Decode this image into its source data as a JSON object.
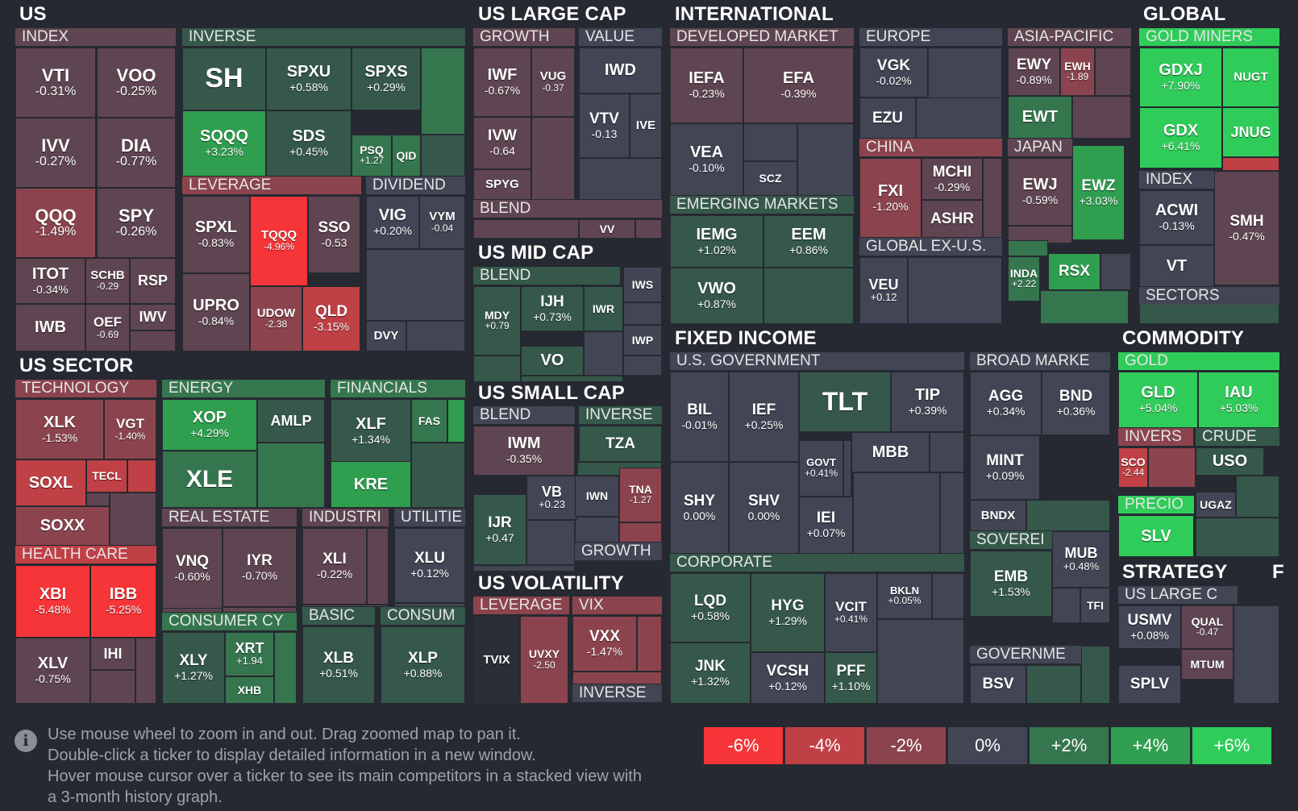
{
  "colors": {
    "r6": "#f63538",
    "r4": "#bf4045",
    "r2": "#8b444e",
    "r1": "#5f4551",
    "z": "#414554",
    "g1": "#35584a",
    "g2": "#35764e",
    "g4": "#2f9e4f",
    "g6": "#30cc5a",
    "bg": "#262931"
  },
  "sections": [
    {
      "key": "us",
      "label": "US"
    },
    {
      "key": "us_large_cap",
      "label": "US LARGE CAP"
    },
    {
      "key": "international",
      "label": "INTERNATIONAL"
    },
    {
      "key": "global",
      "label": "GLOBAL"
    },
    {
      "key": "us_sector",
      "label": "US SECTOR"
    },
    {
      "key": "us_mid_cap",
      "label": "US MID CAP"
    },
    {
      "key": "us_small_cap",
      "label": "US SMALL CAP"
    },
    {
      "key": "fixed_income",
      "label": "FIXED INCOME"
    },
    {
      "key": "commodity",
      "label": "COMMODITY"
    },
    {
      "key": "us_volatility",
      "label": "US VOLATILITY"
    },
    {
      "key": "strategy",
      "label": "STRATEGY"
    },
    {
      "key": "f",
      "label": "F"
    }
  ],
  "groups": [
    {
      "key": "index",
      "label": "INDEX"
    },
    {
      "key": "inverse",
      "label": "INVERSE"
    },
    {
      "key": "leverage",
      "label": "LEVERAGE"
    },
    {
      "key": "dividend",
      "label": "DIVIDEND"
    },
    {
      "key": "growth",
      "label": "GROWTH"
    },
    {
      "key": "value",
      "label": "VALUE"
    },
    {
      "key": "blend_lc",
      "label": "BLEND"
    },
    {
      "key": "developed",
      "label": "DEVELOPED MARKET"
    },
    {
      "key": "europe",
      "label": "EUROPE"
    },
    {
      "key": "asia",
      "label": "ASIA-PACIFIC"
    },
    {
      "key": "china",
      "label": "CHINA"
    },
    {
      "key": "japan",
      "label": "JAPAN"
    },
    {
      "key": "emerging",
      "label": "EMERGING MARKETS"
    },
    {
      "key": "globalexus",
      "label": "GLOBAL EX-U.S."
    },
    {
      "key": "goldminers",
      "label": "GOLD MINERS"
    },
    {
      "key": "gindex",
      "label": "INDEX"
    },
    {
      "key": "sectors",
      "label": "SECTORS"
    },
    {
      "key": "blend_mc",
      "label": "BLEND"
    },
    {
      "key": "blend_sc",
      "label": "BLEND"
    },
    {
      "key": "inverse_sc",
      "label": "INVERSE"
    },
    {
      "key": "growth_sc",
      "label": "GROWTH"
    },
    {
      "key": "technology",
      "label": "TECHNOLOGY"
    },
    {
      "key": "energy",
      "label": "ENERGY"
    },
    {
      "key": "financials",
      "label": "FINANCIALS"
    },
    {
      "key": "healthcare",
      "label": "HEALTH CARE"
    },
    {
      "key": "realestate",
      "label": "REAL ESTATE"
    },
    {
      "key": "industri",
      "label": "INDUSTRI"
    },
    {
      "key": "utilitie",
      "label": "UTILITIE"
    },
    {
      "key": "consumercy",
      "label": "CONSUMER CY"
    },
    {
      "key": "basic",
      "label": "BASIC"
    },
    {
      "key": "consum",
      "label": "CONSUM"
    },
    {
      "key": "vleverage",
      "label": "LEVERAGE"
    },
    {
      "key": "vix",
      "label": "VIX"
    },
    {
      "key": "vinverse",
      "label": "INVERSE"
    },
    {
      "key": "usgov",
      "label": "U.S. GOVERNMENT"
    },
    {
      "key": "broad",
      "label": "BROAD MARKE"
    },
    {
      "key": "corporate",
      "label": "CORPORATE"
    },
    {
      "key": "sovereign",
      "label": "SOVEREI"
    },
    {
      "key": "governme",
      "label": "GOVERNME"
    },
    {
      "key": "gold",
      "label": "GOLD"
    },
    {
      "key": "invers",
      "label": "INVERS"
    },
    {
      "key": "crude",
      "label": "CRUDE"
    },
    {
      "key": "precio",
      "label": "PRECIO"
    },
    {
      "key": "uslargec",
      "label": "US LARGE C"
    }
  ],
  "tickers": [
    {
      "t": "VTI",
      "p": "-0.31%",
      "c": "r1"
    },
    {
      "t": "VOO",
      "p": "-0.25%",
      "c": "r1"
    },
    {
      "t": "IVV",
      "p": "-0.27%",
      "c": "r1"
    },
    {
      "t": "DIA",
      "p": "-0.77%",
      "c": "r1"
    },
    {
      "t": "QQQ",
      "p": "-1.49%",
      "c": "r2"
    },
    {
      "t": "SPY",
      "p": "-0.26%",
      "c": "r1"
    },
    {
      "t": "ITOT",
      "p": "-0.34%",
      "c": "r1"
    },
    {
      "t": "SCHB",
      "p": "-0.29",
      "c": "r1"
    },
    {
      "t": "RSP",
      "p": "",
      "c": "r1"
    },
    {
      "t": "IWB",
      "p": "",
      "c": "r1"
    },
    {
      "t": "OEF",
      "p": "-0.69",
      "c": "r1"
    },
    {
      "t": "IWV",
      "p": "",
      "c": "r1"
    },
    {
      "t": "SH",
      "p": "",
      "c": "g1"
    },
    {
      "t": "SPXU",
      "p": "+0.58%",
      "c": "g1"
    },
    {
      "t": "SPXS",
      "p": "+0.29%",
      "c": "g1"
    },
    {
      "t": "SQQQ",
      "p": "+3.23%",
      "c": "g4"
    },
    {
      "t": "SDS",
      "p": "+0.45%",
      "c": "g1"
    },
    {
      "t": "PSQ",
      "p": "+1.27",
      "c": "g2"
    },
    {
      "t": "QID",
      "p": "",
      "c": "g2"
    },
    {
      "t": "SPXL",
      "p": "-0.83%",
      "c": "r1"
    },
    {
      "t": "TQQQ",
      "p": "-4.96%",
      "c": "r6"
    },
    {
      "t": "SSO",
      "p": "-0.53",
      "c": "r1"
    },
    {
      "t": "UPRO",
      "p": "-0.84%",
      "c": "r1"
    },
    {
      "t": "UDOW",
      "p": "-2.38",
      "c": "r2"
    },
    {
      "t": "QLD",
      "p": "-3.15%",
      "c": "r4"
    },
    {
      "t": "VIG",
      "p": "+0.20%",
      "c": "z"
    },
    {
      "t": "VYM",
      "p": "-0.04",
      "c": "z"
    },
    {
      "t": "DVY",
      "p": "",
      "c": "z"
    },
    {
      "t": "IWF",
      "p": "-0.67%",
      "c": "r1"
    },
    {
      "t": "VUG",
      "p": "-0.37",
      "c": "r1"
    },
    {
      "t": "IVW",
      "p": "-0.64",
      "c": "r1"
    },
    {
      "t": "SPYG",
      "p": "",
      "c": "r1"
    },
    {
      "t": "IWD",
      "p": "",
      "c": "z"
    },
    {
      "t": "VTV",
      "p": "-0.13",
      "c": "z"
    },
    {
      "t": "IVE",
      "p": "",
      "c": "z"
    },
    {
      "t": "VV",
      "p": "",
      "c": "r1"
    },
    {
      "t": "IEFA",
      "p": "-0.23%",
      "c": "r1"
    },
    {
      "t": "EFA",
      "p": "-0.39%",
      "c": "r1"
    },
    {
      "t": "VEA",
      "p": "-0.10%",
      "c": "z"
    },
    {
      "t": "SCZ",
      "p": "",
      "c": "z"
    },
    {
      "t": "VGK",
      "p": "-0.02%",
      "c": "z"
    },
    {
      "t": "EZU",
      "p": "",
      "c": "z"
    },
    {
      "t": "EWY",
      "p": "-0.89%",
      "c": "r1"
    },
    {
      "t": "EWH",
      "p": "-1.89",
      "c": "r2"
    },
    {
      "t": "EWT",
      "p": "",
      "c": "g2"
    },
    {
      "t": "FXI",
      "p": "-1.20%",
      "c": "r2"
    },
    {
      "t": "MCHI",
      "p": "-0.29%",
      "c": "r1"
    },
    {
      "t": "ASHR",
      "p": "",
      "c": "r1"
    },
    {
      "t": "EWJ",
      "p": "-0.59%",
      "c": "r1"
    },
    {
      "t": "EWZ",
      "p": "+3.03%",
      "c": "g4"
    },
    {
      "t": "IEMG",
      "p": "+1.02%",
      "c": "g1"
    },
    {
      "t": "EEM",
      "p": "+0.86%",
      "c": "g1"
    },
    {
      "t": "VWO",
      "p": "+0.87%",
      "c": "g1"
    },
    {
      "t": "VEU",
      "p": "+0.12",
      "c": "z"
    },
    {
      "t": "INDA",
      "p": "+2.22",
      "c": "g2"
    },
    {
      "t": "RSX",
      "p": "",
      "c": "g4"
    },
    {
      "t": "GDXJ",
      "p": "+7.90%",
      "c": "g6"
    },
    {
      "t": "NUGT",
      "p": "",
      "c": "g6"
    },
    {
      "t": "GDX",
      "p": "+6.41%",
      "c": "g6"
    },
    {
      "t": "JNUG",
      "p": "",
      "c": "g6"
    },
    {
      "t": "ACWI",
      "p": "-0.13%",
      "c": "z"
    },
    {
      "t": "SMH",
      "p": "-0.47%",
      "c": "r1"
    },
    {
      "t": "VT",
      "p": "",
      "c": "z"
    },
    {
      "t": "MDY",
      "p": "+0.79",
      "c": "g1"
    },
    {
      "t": "IJH",
      "p": "+0.73%",
      "c": "g1"
    },
    {
      "t": "IWR",
      "p": "",
      "c": "g1"
    },
    {
      "t": "IWS",
      "p": "",
      "c": "z"
    },
    {
      "t": "IWP",
      "p": "",
      "c": "z"
    },
    {
      "t": "VO",
      "p": "",
      "c": "g1"
    },
    {
      "t": "IWM",
      "p": "-0.35%",
      "c": "r1"
    },
    {
      "t": "TZA",
      "p": "",
      "c": "g1"
    },
    {
      "t": "VB",
      "p": "+0.23",
      "c": "z"
    },
    {
      "t": "IWN",
      "p": "",
      "c": "z"
    },
    {
      "t": "TNA",
      "p": "-1.27",
      "c": "r2"
    },
    {
      "t": "IJR",
      "p": "+0.47",
      "c": "g1"
    },
    {
      "t": "XLK",
      "p": "-1.53%",
      "c": "r2"
    },
    {
      "t": "VGT",
      "p": "-1.40%",
      "c": "r2"
    },
    {
      "t": "SOXL",
      "p": "",
      "c": "r4"
    },
    {
      "t": "TECL",
      "p": "",
      "c": "r4"
    },
    {
      "t": "SOXX",
      "p": "",
      "c": "r2"
    },
    {
      "t": "XOP",
      "p": "+4.29%",
      "c": "g4"
    },
    {
      "t": "AMLP",
      "p": "",
      "c": "g1"
    },
    {
      "t": "XLE",
      "p": "",
      "c": "g2"
    },
    {
      "t": "XLF",
      "p": "+1.34%",
      "c": "g1"
    },
    {
      "t": "FAS",
      "p": "",
      "c": "g2"
    },
    {
      "t": "KRE",
      "p": "",
      "c": "g4"
    },
    {
      "t": "XBI",
      "p": "-5.48%",
      "c": "r6"
    },
    {
      "t": "IBB",
      "p": "-5.25%",
      "c": "r6"
    },
    {
      "t": "XLV",
      "p": "-0.75%",
      "c": "r1"
    },
    {
      "t": "IHI",
      "p": "",
      "c": "r1"
    },
    {
      "t": "VNQ",
      "p": "-0.60%",
      "c": "r1"
    },
    {
      "t": "IYR",
      "p": "-0.70%",
      "c": "r1"
    },
    {
      "t": "XLI",
      "p": "-0.22%",
      "c": "r1"
    },
    {
      "t": "XLU",
      "p": "+0.12%",
      "c": "z"
    },
    {
      "t": "XLY",
      "p": "+1.27%",
      "c": "g1"
    },
    {
      "t": "XRT",
      "p": "+1.94",
      "c": "g2"
    },
    {
      "t": "XHB",
      "p": "",
      "c": "g2"
    },
    {
      "t": "XLB",
      "p": "+0.51%",
      "c": "g1"
    },
    {
      "t": "XLP",
      "p": "+0.88%",
      "c": "g1"
    },
    {
      "t": "TVIX",
      "p": "",
      "c": "bg2"
    },
    {
      "t": "UVXY",
      "p": "-2.50",
      "c": "r2"
    },
    {
      "t": "VXX",
      "p": "-1.47%",
      "c": "r2"
    },
    {
      "t": "BIL",
      "p": "-0.01%",
      "c": "z"
    },
    {
      "t": "IEF",
      "p": "+0.25%",
      "c": "z"
    },
    {
      "t": "TLT",
      "p": "",
      "c": "g1"
    },
    {
      "t": "TIP",
      "p": "+0.39%",
      "c": "z"
    },
    {
      "t": "SHY",
      "p": "0.00%",
      "c": "z"
    },
    {
      "t": "SHV",
      "p": "0.00%",
      "c": "z"
    },
    {
      "t": "GOVT",
      "p": "+0.41%",
      "c": "z"
    },
    {
      "t": "MBB",
      "p": "",
      "c": "z"
    },
    {
      "t": "IEI",
      "p": "+0.07%",
      "c": "z"
    },
    {
      "t": "AGG",
      "p": "+0.34%",
      "c": "z"
    },
    {
      "t": "BND",
      "p": "+0.36%",
      "c": "z"
    },
    {
      "t": "MINT",
      "p": "+0.09%",
      "c": "z"
    },
    {
      "t": "BNDX",
      "p": "",
      "c": "z"
    },
    {
      "t": "LQD",
      "p": "+0.58%",
      "c": "g1"
    },
    {
      "t": "HYG",
      "p": "+1.29%",
      "c": "g1"
    },
    {
      "t": "VCIT",
      "p": "+0.41%",
      "c": "z"
    },
    {
      "t": "BKLN",
      "p": "+0.05%",
      "c": "z"
    },
    {
      "t": "JNK",
      "p": "+1.32%",
      "c": "g1"
    },
    {
      "t": "VCSH",
      "p": "+0.12%",
      "c": "z"
    },
    {
      "t": "PFF",
      "p": "+1.10%",
      "c": "g1"
    },
    {
      "t": "EMB",
      "p": "+1.53%",
      "c": "g1"
    },
    {
      "t": "MUB",
      "p": "+0.48%",
      "c": "z"
    },
    {
      "t": "TFI",
      "p": "",
      "c": "z"
    },
    {
      "t": "BSV",
      "p": "",
      "c": "z"
    },
    {
      "t": "GLD",
      "p": "+5.04%",
      "c": "g6"
    },
    {
      "t": "IAU",
      "p": "+5.03%",
      "c": "g6"
    },
    {
      "t": "SCO",
      "p": "-2.44",
      "c": "r4"
    },
    {
      "t": "USO",
      "p": "",
      "c": "g1"
    },
    {
      "t": "SLV",
      "p": "",
      "c": "g6"
    },
    {
      "t": "UGAZ",
      "p": "",
      "c": "z"
    },
    {
      "t": "USMV",
      "p": "+0.08%",
      "c": "z"
    },
    {
      "t": "QUAL",
      "p": "-0.47",
      "c": "r1"
    },
    {
      "t": "MTUM",
      "p": "",
      "c": "r1"
    },
    {
      "t": "SPLV",
      "p": "",
      "c": "z"
    }
  ],
  "help": [
    "Use mouse wheel to zoom in and out. Drag zoomed map to pan it.",
    "Double-click a ticker to display detailed information in a new window.",
    "Hover mouse cursor over a ticker to see its main competitors in a stacked view with",
    "a 3-month history graph."
  ],
  "legend": [
    {
      "label": "-6%",
      "c": "#f63538"
    },
    {
      "label": "-4%",
      "c": "#bf4045"
    },
    {
      "label": "-2%",
      "c": "#8b444e"
    },
    {
      "label": "0%",
      "c": "#414554"
    },
    {
      "label": "+2%",
      "c": "#35764e"
    },
    {
      "label": "+4%",
      "c": "#2f9e4f"
    },
    {
      "label": "+6%",
      "c": "#30cc5a"
    }
  ],
  "info_icon": "info-circle-icon"
}
